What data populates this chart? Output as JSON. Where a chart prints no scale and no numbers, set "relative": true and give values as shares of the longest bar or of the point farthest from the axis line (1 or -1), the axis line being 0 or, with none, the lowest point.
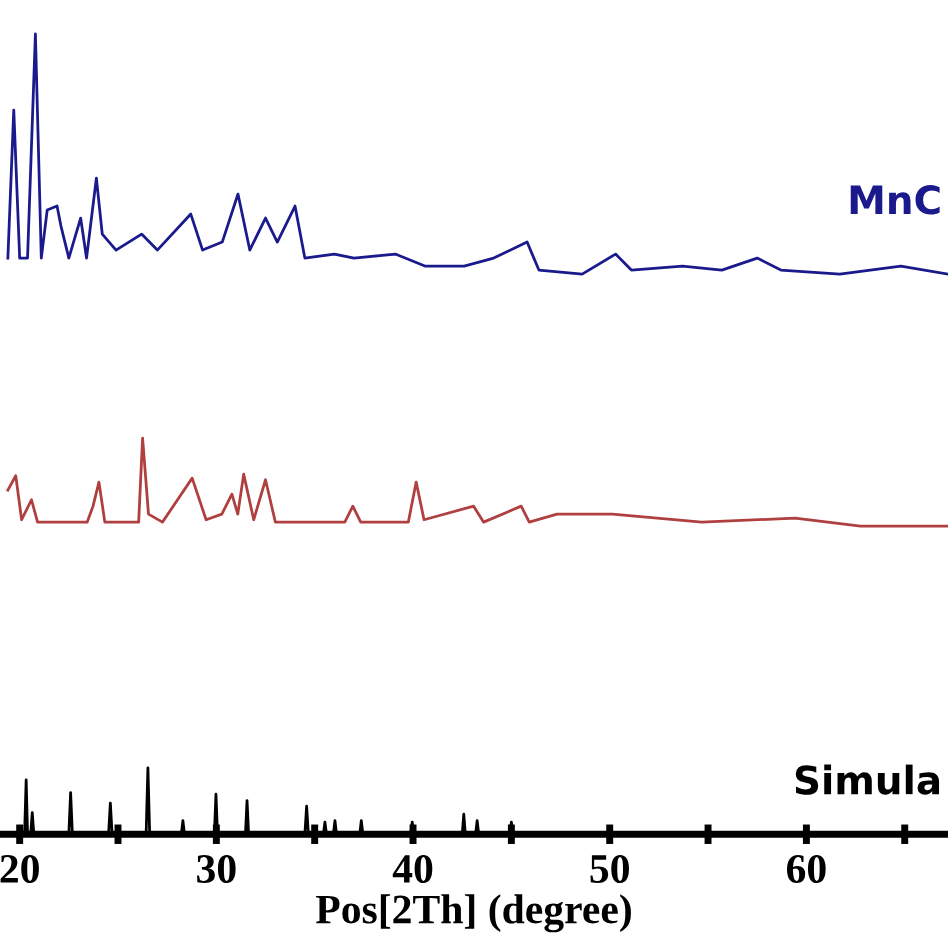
{
  "chart_data": {
    "type": "line",
    "relative": true,
    "xlabel": "Pos[2Th] (degree)",
    "xlim": [
      19.0,
      67.2
    ],
    "xticks": [
      20,
      {
        "value": 25,
        "label": null
      },
      30,
      {
        "value": 35,
        "label": null
      },
      40,
      {
        "value": 45,
        "label": null
      },
      50,
      {
        "value": 55,
        "label": null
      },
      60,
      {
        "value": 65,
        "label": null
      }
    ],
    "grid": false,
    "legend": false,
    "marker": "none",
    "line_style": "solid",
    "series": [
      {
        "name": "MnC",
        "color": "#1a1a8c",
        "x": [
          19.4,
          19.7,
          20.0,
          20.4,
          20.8,
          21.1,
          21.4,
          21.9,
          22.1,
          22.5,
          23.1,
          23.4,
          23.9,
          24.2,
          24.9,
          26.2,
          27.0,
          28.7,
          29.3,
          30.3,
          31.1,
          31.7,
          32.5,
          33.1,
          34.0,
          34.5,
          36.0,
          37.0,
          39.1,
          40.6,
          42.6,
          44.1,
          45.8,
          46.4,
          48.6,
          50.3,
          51.1,
          53.7,
          55.7,
          57.5,
          58.7,
          61.7,
          64.8,
          67.2
        ],
        "values": [
          0.72,
          0.905,
          0.72,
          0.72,
          1.0,
          0.72,
          0.78,
          0.785,
          0.76,
          0.72,
          0.77,
          0.72,
          0.82,
          0.75,
          0.73,
          0.75,
          0.73,
          0.775,
          0.73,
          0.74,
          0.8,
          0.73,
          0.77,
          0.74,
          0.785,
          0.72,
          0.725,
          0.72,
          0.725,
          0.71,
          0.71,
          0.72,
          0.74,
          0.705,
          0.7,
          0.725,
          0.705,
          0.71,
          0.705,
          0.72,
          0.705,
          0.7,
          0.71,
          0.7
        ]
      },
      {
        "color": "#b04040",
        "x": [
          19.4,
          19.8,
          20.1,
          20.6,
          20.91,
          23.43,
          23.73,
          24.03,
          24.33,
          26.05,
          26.25,
          26.55,
          27.26,
          28.77,
          29.48,
          30.28,
          30.79,
          31.09,
          31.39,
          31.9,
          32.5,
          33.0,
          36.53,
          36.94,
          37.34,
          39.76,
          40.16,
          40.56,
          43.08,
          43.59,
          45.5,
          45.91,
          47.32,
          48.23,
          50.14,
          54.68,
          59.42,
          62.75,
          67.18
        ],
        "values": [
          0.43,
          0.448,
          0.393,
          0.418,
          0.39,
          0.39,
          0.41,
          0.44,
          0.39,
          0.39,
          0.495,
          0.4,
          0.39,
          0.445,
          0.393,
          0.4,
          0.425,
          0.4,
          0.45,
          0.393,
          0.443,
          0.39,
          0.39,
          0.41,
          0.39,
          0.39,
          0.44,
          0.393,
          0.41,
          0.39,
          0.41,
          0.39,
          0.4,
          0.4,
          0.4,
          0.39,
          0.395,
          0.385,
          0.385
        ]
      },
      {
        "name": "Simula",
        "color": "#000000",
        "x": [
          19.4,
          20.25,
          20.33,
          20.4,
          20.56,
          20.64,
          20.72,
          22.5,
          22.59,
          22.68,
          24.52,
          24.61,
          24.7,
          26.43,
          26.52,
          26.61,
          28.22,
          28.3,
          28.38,
          29.9,
          29.98,
          30.06,
          31.48,
          31.56,
          31.64,
          34.5,
          34.59,
          34.68,
          35.44,
          35.52,
          35.6,
          35.95,
          36.03,
          36.11,
          37.29,
          37.37,
          37.45,
          39.88,
          39.96,
          40.04,
          42.5,
          42.58,
          42.66,
          43.18,
          43.26,
          43.34,
          44.92,
          45.0,
          45.08,
          67.2
        ],
        "values": [
          0,
          0,
          0.068,
          0,
          0,
          0.027,
          0,
          0,
          0.052,
          0,
          0,
          0.039,
          0,
          0,
          0.083,
          0,
          0,
          0.017,
          0,
          0,
          0.05,
          0,
          0,
          0.042,
          0,
          0,
          0.035,
          0,
          0,
          0.015,
          0,
          0,
          0.017,
          0,
          0,
          0.017,
          0,
          0,
          0.015,
          0,
          0,
          0.025,
          0,
          0,
          0.017,
          0,
          0,
          0.015,
          0,
          0
        ]
      }
    ]
  }
}
